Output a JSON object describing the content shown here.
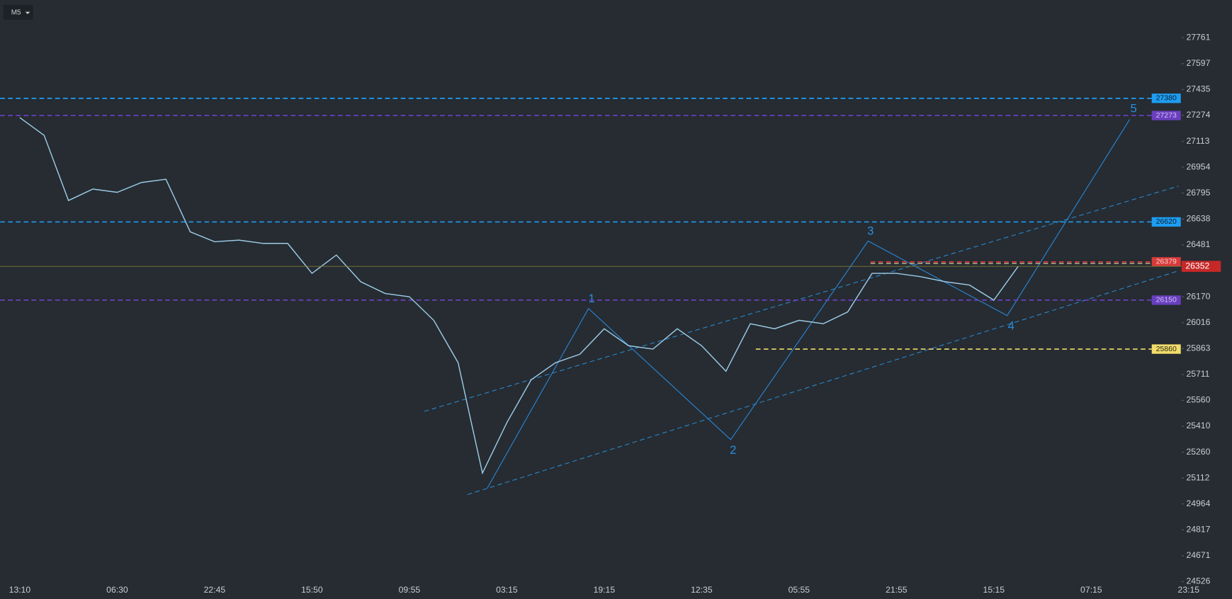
{
  "timeframe": "M5",
  "waves": [
    "1",
    "2",
    "3",
    "4",
    "5"
  ],
  "chart_data": {
    "type": "line",
    "log_scale": true,
    "color": "#9ccbe6",
    "categories": [
      "13:10",
      null,
      null,
      null,
      "06:30",
      null,
      null,
      null,
      "22:45",
      null,
      null,
      null,
      "15:50",
      null,
      null,
      null,
      "09:55",
      null,
      null,
      null,
      "03:15",
      null,
      null,
      null,
      "19:15",
      null,
      null,
      null,
      "12:35",
      null,
      null,
      null,
      "05:55",
      null,
      null,
      null,
      "21:55",
      null,
      null,
      null,
      "15:15",
      null,
      null,
      null,
      "07:15",
      null,
      null,
      null,
      "23:15"
    ],
    "values": [
      27260,
      27150,
      26750,
      26820,
      26800,
      26860,
      26880,
      26560,
      26500,
      26510,
      26490,
      26490,
      26310,
      26420,
      26260,
      26190,
      26170,
      26030,
      25780,
      25140,
      25430,
      25680,
      25780,
      25830,
      25980,
      25880,
      25860,
      25980,
      25880,
      25730,
      26010,
      25980,
      26030,
      26010,
      26080,
      26310,
      26310,
      26290,
      26260,
      26240,
      26150,
      26352,
      null,
      null,
      null,
      null,
      null,
      null,
      null
    ],
    "ylim": [
      24508,
      28000
    ],
    "yticks": [
      27761,
      27597,
      27435,
      27274,
      27113,
      26954,
      26795,
      26638,
      26481,
      26170,
      26016,
      25863,
      25711,
      25560,
      25410,
      25260,
      25112,
      24964,
      24817,
      24671,
      24526
    ],
    "levels": [
      {
        "value": 27380,
        "color": "#1e9df2",
        "text_color": "#0b1e2c"
      },
      {
        "value": 27273,
        "color": "#6a3fbf",
        "text_color": "#cdbff0"
      },
      {
        "value": 26620,
        "color": "#1e9df2",
        "text_color": "#0b1e2c"
      },
      {
        "value": 26379,
        "color": "#d83a3a",
        "text_color": "#f4d0d0"
      },
      {
        "value": 26150,
        "color": "#6a3fbf",
        "text_color": "#cdbff0"
      },
      {
        "value": 25860,
        "color": "#f2dc6c",
        "text_color": "#2a2a10"
      }
    ],
    "last_price": 26352,
    "last_color": "#c62828"
  }
}
